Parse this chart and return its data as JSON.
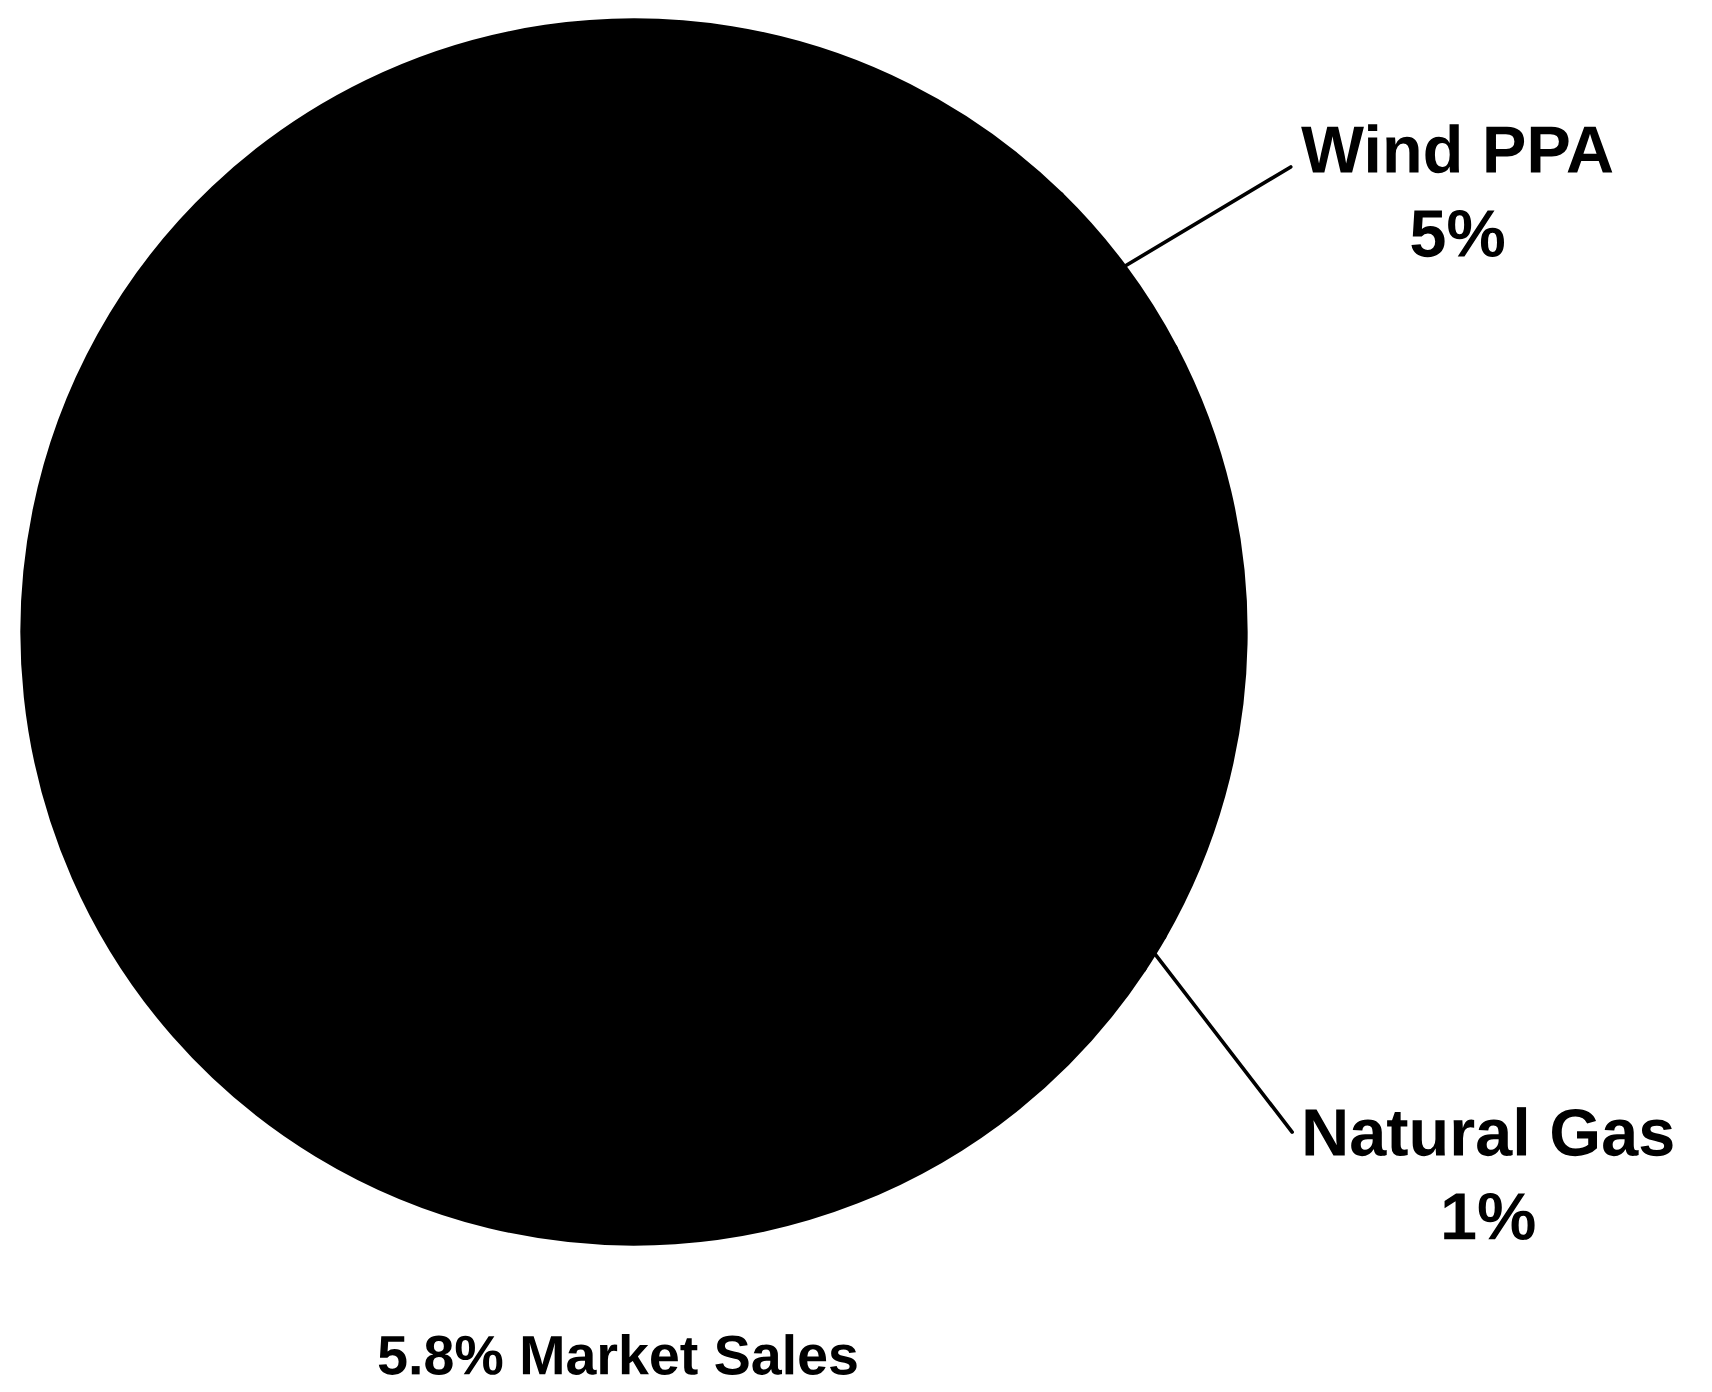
{
  "chart_data": {
    "type": "pie",
    "categories": [
      "Wind PPA",
      null,
      "Natural Gas",
      null
    ],
    "values": [
      5,
      16,
      1,
      78
    ],
    "colors": [
      "#000000",
      "#000000",
      "#000000",
      "#000000"
    ],
    "value_labels": [
      "5%",
      null,
      "1%",
      null
    ],
    "annotations": [
      "5.8% Market Sales"
    ]
  }
}
